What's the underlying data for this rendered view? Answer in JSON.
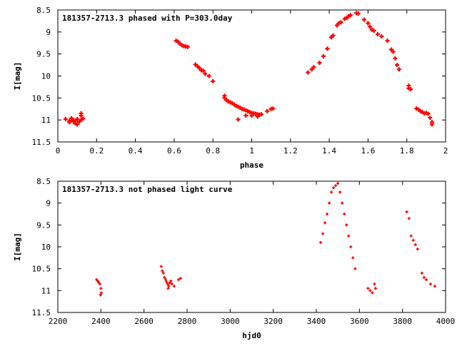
{
  "chart_data": [
    {
      "type": "scatter",
      "title": "181357-2713.3 phased with P=303.0day",
      "xlabel": "phase",
      "ylabel": "I[mag]",
      "xlim": [
        0,
        2
      ],
      "ylim": [
        11.5,
        8.5
      ],
      "y_inverted": true,
      "xticks": [
        "0",
        "0.2",
        "0.4",
        "0.6",
        "0.8",
        "1",
        "1.2",
        "1.4",
        "1.6",
        "1.8",
        "2"
      ],
      "yticks": [
        "8.5",
        "9",
        "9.5",
        "10",
        "10.5",
        "11",
        "11.5"
      ],
      "grid": false,
      "color": "#ff0000",
      "marker": "plus",
      "points": [
        [
          0.04,
          10.98
        ],
        [
          0.06,
          11.02
        ],
        [
          0.06,
          11.05
        ],
        [
          0.07,
          10.96
        ],
        [
          0.08,
          11.0
        ],
        [
          0.08,
          11.03
        ],
        [
          0.09,
          11.08
        ],
        [
          0.09,
          11.02
        ],
        [
          0.1,
          10.98
        ],
        [
          0.1,
          11.1
        ],
        [
          0.11,
          11.04
        ],
        [
          0.12,
          10.9
        ],
        [
          0.12,
          11.0
        ],
        [
          0.12,
          10.85
        ],
        [
          0.13,
          10.97
        ],
        [
          0.61,
          9.2
        ],
        [
          0.62,
          9.22
        ],
        [
          0.63,
          9.27
        ],
        [
          0.64,
          9.3
        ],
        [
          0.65,
          9.32
        ],
        [
          0.66,
          9.33
        ],
        [
          0.67,
          9.34
        ],
        [
          0.71,
          9.74
        ],
        [
          0.72,
          9.78
        ],
        [
          0.73,
          9.82
        ],
        [
          0.74,
          9.87
        ],
        [
          0.75,
          9.88
        ],
        [
          0.76,
          9.95
        ],
        [
          0.78,
          10.0
        ],
        [
          0.8,
          10.12
        ],
        [
          0.86,
          10.45
        ],
        [
          0.86,
          10.5
        ],
        [
          0.87,
          10.55
        ],
        [
          0.88,
          10.58
        ],
        [
          0.89,
          10.6
        ],
        [
          0.9,
          10.62
        ],
        [
          0.91,
          10.65
        ],
        [
          0.92,
          10.68
        ],
        [
          0.93,
          10.7
        ],
        [
          0.94,
          10.72
        ],
        [
          0.95,
          10.75
        ],
        [
          0.96,
          10.76
        ],
        [
          0.97,
          10.78
        ],
        [
          0.98,
          10.8
        ],
        [
          0.99,
          10.82
        ],
        [
          1.0,
          10.84
        ],
        [
          1.01,
          10.85
        ],
        [
          1.02,
          10.86
        ],
        [
          1.03,
          10.87
        ],
        [
          1.04,
          10.88
        ],
        [
          1.05,
          10.87
        ],
        [
          0.93,
          10.99
        ],
        [
          0.97,
          10.9
        ],
        [
          1.0,
          10.9
        ],
        [
          1.03,
          10.92
        ],
        [
          1.08,
          10.8
        ],
        [
          1.1,
          10.75
        ],
        [
          1.11,
          10.74
        ],
        [
          1.29,
          9.92
        ],
        [
          1.31,
          9.85
        ],
        [
          1.32,
          9.8
        ],
        [
          1.35,
          9.7
        ],
        [
          1.37,
          9.55
        ],
        [
          1.39,
          9.38
        ],
        [
          1.41,
          9.12
        ],
        [
          1.42,
          9.08
        ],
        [
          1.44,
          8.85
        ],
        [
          1.45,
          8.8
        ],
        [
          1.46,
          8.78
        ],
        [
          1.48,
          8.7
        ],
        [
          1.49,
          8.68
        ],
        [
          1.5,
          8.64
        ],
        [
          1.51,
          8.62
        ],
        [
          1.54,
          8.57
        ],
        [
          1.55,
          8.58
        ],
        [
          1.58,
          8.72
        ],
        [
          1.6,
          8.8
        ],
        [
          1.61,
          8.88
        ],
        [
          1.62,
          8.95
        ],
        [
          1.63,
          8.97
        ],
        [
          1.65,
          9.05
        ],
        [
          1.67,
          9.1
        ],
        [
          1.7,
          9.2
        ],
        [
          1.72,
          9.4
        ],
        [
          1.73,
          9.45
        ],
        [
          1.74,
          9.6
        ],
        [
          1.75,
          9.75
        ],
        [
          1.76,
          9.85
        ],
        [
          1.81,
          10.22
        ],
        [
          1.81,
          10.28
        ],
        [
          1.82,
          10.3
        ],
        [
          1.85,
          10.74
        ],
        [
          1.86,
          10.76
        ],
        [
          1.87,
          10.8
        ],
        [
          1.88,
          10.82
        ],
        [
          1.89,
          10.85
        ],
        [
          1.9,
          10.84
        ],
        [
          1.91,
          10.86
        ],
        [
          1.92,
          10.95
        ],
        [
          1.93,
          11.05
        ],
        [
          1.93,
          11.1
        ]
      ]
    },
    {
      "type": "scatter",
      "title": "181357-2713.3 not phased light curve",
      "xlabel": "hjd0",
      "ylabel": "I[mag]",
      "xlim": [
        2200,
        4000
      ],
      "ylim": [
        11.5,
        8.5
      ],
      "y_inverted": true,
      "xticks": [
        "2200",
        "2400",
        "2600",
        "2800",
        "3000",
        "3200",
        "3400",
        "3600",
        "3800",
        "4000"
      ],
      "yticks": [
        "8.5",
        "9",
        "9.5",
        "10",
        "10.5",
        "11",
        "11.5"
      ],
      "grid": false,
      "color": "#ff0000",
      "marker": "plus",
      "points": [
        [
          2380,
          10.75
        ],
        [
          2385,
          10.78
        ],
        [
          2390,
          10.82
        ],
        [
          2395,
          10.85
        ],
        [
          2400,
          10.95
        ],
        [
          2402,
          11.05
        ],
        [
          2398,
          11.1
        ],
        [
          2680,
          10.45
        ],
        [
          2685,
          10.55
        ],
        [
          2690,
          10.6
        ],
        [
          2695,
          10.7
        ],
        [
          2700,
          10.75
        ],
        [
          2705,
          10.8
        ],
        [
          2710,
          10.85
        ],
        [
          2712,
          10.95
        ],
        [
          2715,
          10.9
        ],
        [
          2720,
          10.82
        ],
        [
          2725,
          10.78
        ],
        [
          2730,
          10.85
        ],
        [
          2740,
          10.9
        ],
        [
          2760,
          10.75
        ],
        [
          2770,
          10.72
        ],
        [
          3420,
          9.9
        ],
        [
          3430,
          9.7
        ],
        [
          3440,
          9.45
        ],
        [
          3450,
          9.25
        ],
        [
          3460,
          9.0
        ],
        [
          3470,
          8.75
        ],
        [
          3480,
          8.65
        ],
        [
          3490,
          8.6
        ],
        [
          3500,
          8.55
        ],
        [
          3510,
          8.75
        ],
        [
          3520,
          9.0
        ],
        [
          3530,
          9.25
        ],
        [
          3540,
          9.5
        ],
        [
          3550,
          9.75
        ],
        [
          3560,
          10.0
        ],
        [
          3570,
          10.25
        ],
        [
          3580,
          10.5
        ],
        [
          3640,
          10.95
        ],
        [
          3650,
          11.0
        ],
        [
          3660,
          11.05
        ],
        [
          3670,
          10.85
        ],
        [
          3675,
          10.95
        ],
        [
          3820,
          9.2
        ],
        [
          3830,
          9.35
        ],
        [
          3840,
          9.75
        ],
        [
          3850,
          9.85
        ],
        [
          3860,
          9.95
        ],
        [
          3870,
          10.05
        ],
        [
          3890,
          10.6
        ],
        [
          3900,
          10.7
        ],
        [
          3910,
          10.75
        ],
        [
          3930,
          10.85
        ],
        [
          3950,
          10.9
        ]
      ]
    }
  ]
}
